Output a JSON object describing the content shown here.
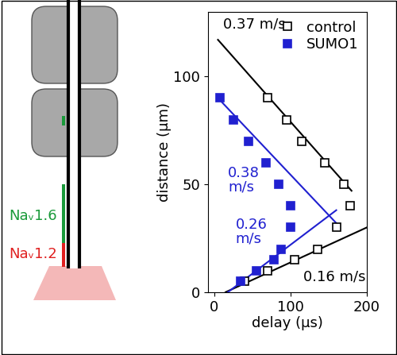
{
  "diagram": {
    "labels": [
      {
        "text": "Naᵥ1.6",
        "color": "#1a9a3a"
      },
      {
        "text": "Naᵥ1.2",
        "color": "#e02020"
      }
    ]
  },
  "chart_data": {
    "type": "scatter",
    "x_label": "delay (µs)",
    "y_label": "distance (µm)",
    "xlim": [
      -8,
      200
    ],
    "xticks": [
      0,
      100,
      200
    ],
    "ylim": [
      0,
      130
    ],
    "yticks": [
      0,
      50,
      100
    ],
    "legend": "upper right",
    "series": [
      {
        "name": "control",
        "color": "#000000",
        "marker": "open_square",
        "x": [
          40,
          70,
          105,
          135,
          160,
          178,
          170,
          145,
          115,
          95,
          70
        ],
        "values": [
          5,
          10,
          15,
          20,
          30,
          40,
          50,
          60,
          70,
          80,
          90
        ]
      },
      {
        "name": "SUMO1",
        "color": "#2020d0",
        "marker": "square",
        "x": [
          8,
          25,
          45,
          68,
          85,
          100,
          100,
          88,
          78,
          55,
          35
        ],
        "values": [
          90,
          80,
          70,
          60,
          50,
          40,
          30,
          20,
          15,
          10,
          5
        ]
      }
    ],
    "fits": [
      {
        "label": "0.37 m/s",
        "color": "#000000",
        "x": [
          5,
          180
        ],
        "values": [
          117,
          47
        ]
      },
      {
        "label": "0.16 m/s",
        "color": "#000000",
        "x": [
          15,
          200
        ],
        "values": [
          0,
          30
        ]
      },
      {
        "label": "0.38\nm/s",
        "color": "#2020d0",
        "x": [
          5,
          160
        ],
        "values": [
          90,
          32
        ]
      },
      {
        "label": "0.26\nm/s",
        "color": "#2020d0",
        "x": [
          18,
          160
        ],
        "values": [
          0,
          38
        ]
      }
    ]
  }
}
